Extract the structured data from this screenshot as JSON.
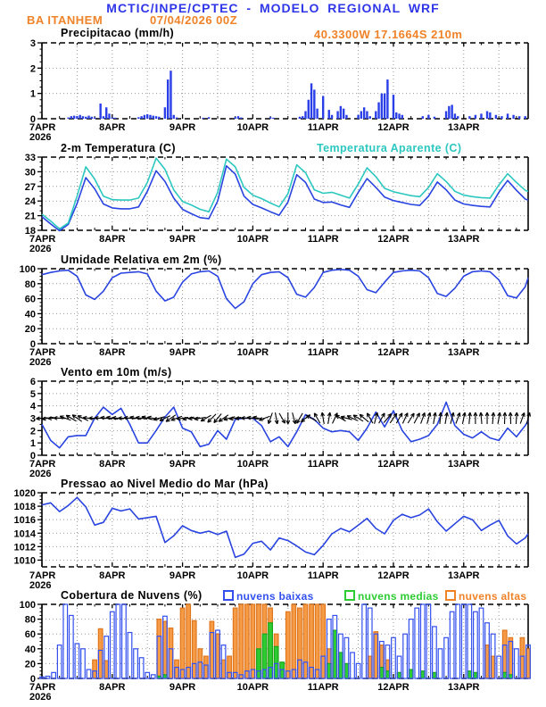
{
  "header": {
    "title": "MCTIC/INPE/CPTEC - MODELO REGIONAL WRF",
    "station": "BA ITANHEM",
    "run": "07/04/2026 00Z",
    "location": "40.3300W 17.1664S 210m"
  },
  "colors": {
    "header_blue": "#2f36e8",
    "header_orange": "#f08228",
    "line_blue": "#2944e0",
    "aparente_cyan": "#2cc8c0",
    "precip_bar": "#2a3fe8",
    "cloud_low_blue": "#3350ee",
    "cloud_mid_green": "#2ecc33",
    "cloud_mid_green_edge": "#1ba51b",
    "cloud_high_orange": "#f59a45",
    "cloud_high_orange_edge": "#e1761c",
    "grid_gray": "#999999",
    "axis_black": "#000000"
  },
  "x_axis": {
    "day_labels": [
      "7APR",
      "8APR",
      "9APR",
      "10APR",
      "11APR",
      "12APR",
      "13APR"
    ],
    "year_label": "2026",
    "hours_total": 166,
    "hours_per_day": 24,
    "minor_tick_hours": 6,
    "grid_hours": 12
  },
  "legend": {
    "items": [
      {
        "label": "nuvens baixas",
        "color": "#3350ee"
      },
      {
        "label": "nuvens medias",
        "color": "#2ecc33"
      },
      {
        "label": "nuvens altas",
        "color": "#f08228"
      }
    ]
  },
  "chart_data": [
    {
      "type": "bar",
      "title": "Precipitacao (mm/h)",
      "ylabel": "mm/h",
      "ylim": [
        0,
        3
      ],
      "yticks": [
        0,
        1,
        2,
        3
      ],
      "minor_div": 4,
      "points": [
        [
          9,
          0.05
        ],
        [
          10,
          0.1
        ],
        [
          11,
          0.12
        ],
        [
          12,
          0.1
        ],
        [
          13,
          0.15
        ],
        [
          14,
          0.1
        ],
        [
          15,
          0.08
        ],
        [
          16,
          0.12
        ],
        [
          17,
          0.08
        ],
        [
          18,
          0.05
        ],
        [
          20,
          0.6
        ],
        [
          21,
          0.1
        ],
        [
          22,
          0.45
        ],
        [
          23,
          0.2
        ],
        [
          24,
          0.05
        ],
        [
          25,
          0.04
        ],
        [
          33,
          0.06
        ],
        [
          34,
          0.1
        ],
        [
          35,
          0.15
        ],
        [
          36,
          0.18
        ],
        [
          37,
          0.15
        ],
        [
          38,
          0.12
        ],
        [
          39,
          0.1
        ],
        [
          40,
          0.08
        ],
        [
          42,
          0.45
        ],
        [
          43,
          1.55
        ],
        [
          44,
          1.9
        ],
        [
          45,
          0.15
        ],
        [
          46,
          0.05
        ],
        [
          55,
          0.04
        ],
        [
          57,
          0.06
        ],
        [
          66,
          0.06
        ],
        [
          67,
          0.1
        ],
        [
          68,
          0.05
        ],
        [
          78,
          0.06
        ],
        [
          79,
          0.04
        ],
        [
          88,
          0.08
        ],
        [
          89,
          0.1
        ],
        [
          90,
          0.3
        ],
        [
          91,
          0.75
        ],
        [
          92,
          1.4
        ],
        [
          93,
          1.15
        ],
        [
          94,
          0.4
        ],
        [
          96,
          0.9
        ],
        [
          98,
          0.35
        ],
        [
          99,
          0.15
        ],
        [
          101,
          0.3
        ],
        [
          102,
          0.5
        ],
        [
          103,
          0.4
        ],
        [
          104,
          0.15
        ],
        [
          108,
          0.15
        ],
        [
          109,
          0.3
        ],
        [
          110,
          0.45
        ],
        [
          111,
          0.3
        ],
        [
          112,
          0.1
        ],
        [
          114,
          0.3
        ],
        [
          115,
          0.65
        ],
        [
          116,
          1.0
        ],
        [
          117,
          1.0
        ],
        [
          118,
          1.55
        ],
        [
          120,
          0.95
        ],
        [
          121,
          0.25
        ],
        [
          122,
          0.2
        ],
        [
          123,
          0.15
        ],
        [
          130,
          0.1
        ],
        [
          132,
          0.15
        ],
        [
          134,
          0.08
        ],
        [
          138,
          0.3
        ],
        [
          139,
          0.5
        ],
        [
          140,
          0.55
        ],
        [
          141,
          0.2
        ],
        [
          142,
          0.1
        ],
        [
          146,
          0.1
        ],
        [
          148,
          0.15
        ],
        [
          150,
          0.2
        ],
        [
          152,
          0.3
        ],
        [
          153,
          0.25
        ],
        [
          155,
          0.15
        ],
        [
          157,
          0.1
        ],
        [
          159,
          0.2
        ],
        [
          161,
          0.15
        ],
        [
          163,
          0.1
        ],
        [
          165,
          0.1
        ]
      ]
    },
    {
      "type": "line",
      "title": "2-m Temperatura (C)",
      "title2": "Temperatura Aparente (C)",
      "ylim": [
        18,
        33
      ],
      "yticks": [
        18,
        21,
        24,
        27,
        30,
        33
      ],
      "minor_div": 3,
      "x_step_hours": 3,
      "series": [
        {
          "name": "2-m Temperatura",
          "color": "#2944e0",
          "values": [
            20.8,
            19.3,
            17.9,
            19.2,
            23.5,
            28.8,
            26.5,
            23.4,
            22.6,
            22.4,
            22.4,
            22.8,
            26.0,
            30.2,
            28.0,
            24.6,
            22.3,
            21.4,
            20.6,
            20.4,
            24.0,
            31.2,
            29.5,
            25.0,
            23.3,
            22.6,
            21.8,
            21.1,
            23.8,
            29.4,
            27.8,
            24.4,
            23.7,
            23.8,
            23.2,
            22.7,
            25.8,
            28.6,
            26.8,
            24.8,
            24.1,
            23.7,
            23.3,
            23.1,
            25.0,
            27.9,
            26.3,
            24.2,
            23.4,
            23.1,
            22.9,
            22.8,
            25.8,
            28.2,
            26.2,
            24.4,
            24.2
          ]
        },
        {
          "name": "Temperatura Aparente",
          "color": "#2cc8c0",
          "values": [
            21.3,
            19.9,
            18.3,
            19.5,
            25.0,
            31.0,
            28.5,
            25.0,
            24.3,
            24.2,
            24.2,
            24.6,
            27.8,
            32.8,
            30.5,
            26.3,
            23.9,
            23.2,
            22.3,
            21.8,
            25.8,
            32.6,
            31.0,
            26.8,
            25.2,
            24.5,
            23.6,
            22.8,
            25.5,
            31.4,
            29.8,
            26.3,
            25.6,
            25.8,
            25.2,
            24.6,
            27.5,
            30.8,
            29.0,
            26.6,
            25.9,
            25.5,
            25.1,
            24.9,
            26.8,
            29.6,
            28.0,
            26.0,
            25.2,
            24.9,
            24.7,
            24.6,
            27.3,
            29.6,
            27.8,
            26.2,
            26.0
          ]
        }
      ]
    },
    {
      "type": "line",
      "title": "Umidade Relativa em 2m (%)",
      "ylim": [
        0,
        100
      ],
      "yticks": [
        0,
        20,
        40,
        60,
        80,
        100
      ],
      "minor_div": 4,
      "x_step_hours": 3,
      "series": [
        {
          "name": "Umidade Relativa",
          "color": "#2944e0",
          "values": [
            92,
            95,
            97,
            98,
            90,
            65,
            59,
            70,
            88,
            94,
            95,
            96,
            93,
            70,
            57,
            62,
            82,
            93,
            96,
            97,
            90,
            60,
            47,
            56,
            80,
            92,
            95,
            96,
            88,
            66,
            62,
            75,
            95,
            98,
            99,
            98,
            90,
            72,
            68,
            82,
            95,
            97,
            98,
            97,
            88,
            67,
            63,
            74,
            90,
            96,
            97,
            96,
            85,
            64,
            61,
            76,
            88
          ]
        }
      ]
    },
    {
      "type": "line_barbs",
      "title": "Vento em 10m (m/s)",
      "ylim": [
        0,
        6
      ],
      "yticks": [
        0,
        1,
        2,
        3,
        4,
        5,
        6
      ],
      "minor_div": 2,
      "x_step_hours": 3,
      "arrow_anchor_value": 3,
      "arrow_step_hours": 2,
      "arrow_angles_deg": [
        185,
        190,
        182,
        178,
        160,
        150,
        145,
        155,
        175,
        180,
        178,
        172,
        170,
        175,
        180,
        176,
        168,
        172,
        165,
        170,
        195,
        205,
        215,
        200,
        188,
        192,
        185,
        190,
        210,
        225,
        230,
        215,
        195,
        188,
        182,
        178,
        172,
        168,
        200,
        250,
        280,
        300,
        270,
        285,
        240,
        220,
        150,
        120,
        100,
        80,
        65,
        150,
        165,
        155,
        148,
        140,
        120,
        75,
        60,
        50,
        55,
        60,
        65,
        58,
        62,
        70,
        75,
        80,
        85,
        80,
        75,
        70,
        78,
        85,
        90,
        95,
        90,
        85,
        80,
        88,
        92,
        86,
        70,
        75
      ],
      "series": [
        {
          "name": "Vento 10m",
          "color": "#2944e0",
          "values": [
            2.5,
            1.2,
            0.6,
            1.5,
            1.6,
            1.6,
            3.0,
            3.9,
            3.3,
            3.8,
            2.5,
            1.0,
            1.0,
            2.0,
            3.1,
            3.9,
            2.2,
            1.9,
            0.7,
            0.9,
            2.0,
            1.3,
            2.9,
            3.0,
            3.0,
            2.4,
            1.1,
            1.5,
            0.7,
            1.9,
            3.3,
            2.9,
            2.2,
            1.9,
            2.0,
            1.9,
            1.2,
            2.2,
            3.5,
            2.3,
            3.6,
            2.0,
            1.1,
            1.3,
            1.6,
            2.5,
            4.3,
            2.4,
            1.7,
            1.4,
            1.9,
            1.4,
            1.2,
            2.2,
            1.5,
            2.4,
            2.8
          ]
        }
      ]
    },
    {
      "type": "line",
      "title": "Pressao ao Nivel Medio do Mar (hPa)",
      "ylim": [
        1009,
        1020
      ],
      "yticks": [
        1010,
        1012,
        1014,
        1016,
        1018,
        1020
      ],
      "minor_div": 4,
      "x_step_hours": 3,
      "series": [
        {
          "name": "Pressao",
          "color": "#2944e0",
          "values": [
            1018.2,
            1018.5,
            1017.2,
            1018.1,
            1019.3,
            1017.9,
            1015.2,
            1015.6,
            1017.7,
            1017.3,
            1017.6,
            1016.1,
            1016.3,
            1016.5,
            1012.6,
            1013.6,
            1015.1,
            1014.4,
            1014.0,
            1014.3,
            1013.8,
            1014.3,
            1010.4,
            1010.9,
            1012.5,
            1012.8,
            1011.5,
            1013.3,
            1012.9,
            1012.1,
            1011.2,
            1010.8,
            1012.2,
            1013.9,
            1014.7,
            1014.2,
            1015.2,
            1016.2,
            1014.7,
            1013.9,
            1015.9,
            1016.8,
            1016.3,
            1016.7,
            1017.6,
            1015.7,
            1014.3,
            1015.4,
            1016.5,
            1016.0,
            1014.4,
            1015.2,
            1015.9,
            1013.6,
            1012.4,
            1013.3,
            1013.9
          ]
        }
      ]
    },
    {
      "type": "bar3",
      "title": "Cobertura de Nuvens (%)",
      "ylim": [
        0,
        100
      ],
      "yticks": [
        0,
        20,
        40,
        60,
        80,
        100
      ],
      "minor_div": 4,
      "x_step_hours": 2,
      "series": [
        {
          "name": "nuvens altas",
          "fill": "#f59a45",
          "edge": "#e1761c",
          "values": [
            0,
            0,
            0,
            0,
            0,
            0,
            0,
            0,
            0,
            25,
            67,
            24,
            0,
            0,
            0,
            0,
            0,
            0,
            0,
            0,
            80,
            77,
            68,
            25,
            95,
            100,
            78,
            40,
            30,
            77,
            60,
            25,
            30,
            95,
            100,
            100,
            100,
            100,
            100,
            95,
            60,
            20,
            90,
            100,
            95,
            100,
            100,
            100,
            100,
            40,
            20,
            0,
            0,
            0,
            0,
            0,
            30,
            63,
            45,
            25,
            0,
            0,
            0,
            0,
            0,
            0,
            0,
            0,
            0,
            0,
            0,
            0,
            0,
            0,
            0,
            0,
            45,
            30,
            0,
            65,
            55,
            0,
            55,
            40
          ]
        },
        {
          "name": "nuvens medias",
          "fill": "#2ecc33",
          "edge": "#1ba51b",
          "values": [
            0,
            0,
            0,
            0,
            0,
            0,
            0,
            0,
            0,
            0,
            0,
            0,
            0,
            0,
            0,
            0,
            0,
            0,
            0,
            0,
            3,
            5,
            0,
            0,
            0,
            0,
            0,
            0,
            0,
            0,
            0,
            0,
            0,
            0,
            0,
            0,
            0,
            40,
            60,
            75,
            43,
            22,
            0,
            0,
            0,
            0,
            0,
            0,
            0,
            20,
            65,
            35,
            20,
            0,
            0,
            0,
            0,
            0,
            15,
            10,
            0,
            8,
            0,
            12,
            0,
            10,
            0,
            8,
            0,
            0,
            0,
            0,
            0,
            10,
            8,
            0,
            0,
            0,
            0,
            8,
            5,
            0,
            0,
            0
          ]
        },
        {
          "name": "nuvens baixas",
          "fill": "none",
          "edge": "#3350ee",
          "values": [
            2,
            3,
            8,
            45,
            100,
            85,
            47,
            40,
            12,
            10,
            38,
            57,
            90,
            100,
            100,
            62,
            40,
            28,
            8,
            5,
            57,
            84,
            40,
            15,
            12,
            15,
            20,
            22,
            18,
            62,
            65,
            45,
            8,
            8,
            5,
            10,
            12,
            10,
            12,
            15,
            20,
            12,
            10,
            12,
            25,
            22,
            15,
            12,
            30,
            80,
            85,
            60,
            55,
            35,
            20,
            100,
            95,
            60,
            50,
            45,
            55,
            30,
            60,
            80,
            95,
            100,
            100,
            70,
            40,
            55,
            90,
            100,
            100,
            100,
            90,
            95,
            75,
            60,
            30,
            45,
            50,
            40,
            30,
            45
          ]
        }
      ]
    }
  ]
}
